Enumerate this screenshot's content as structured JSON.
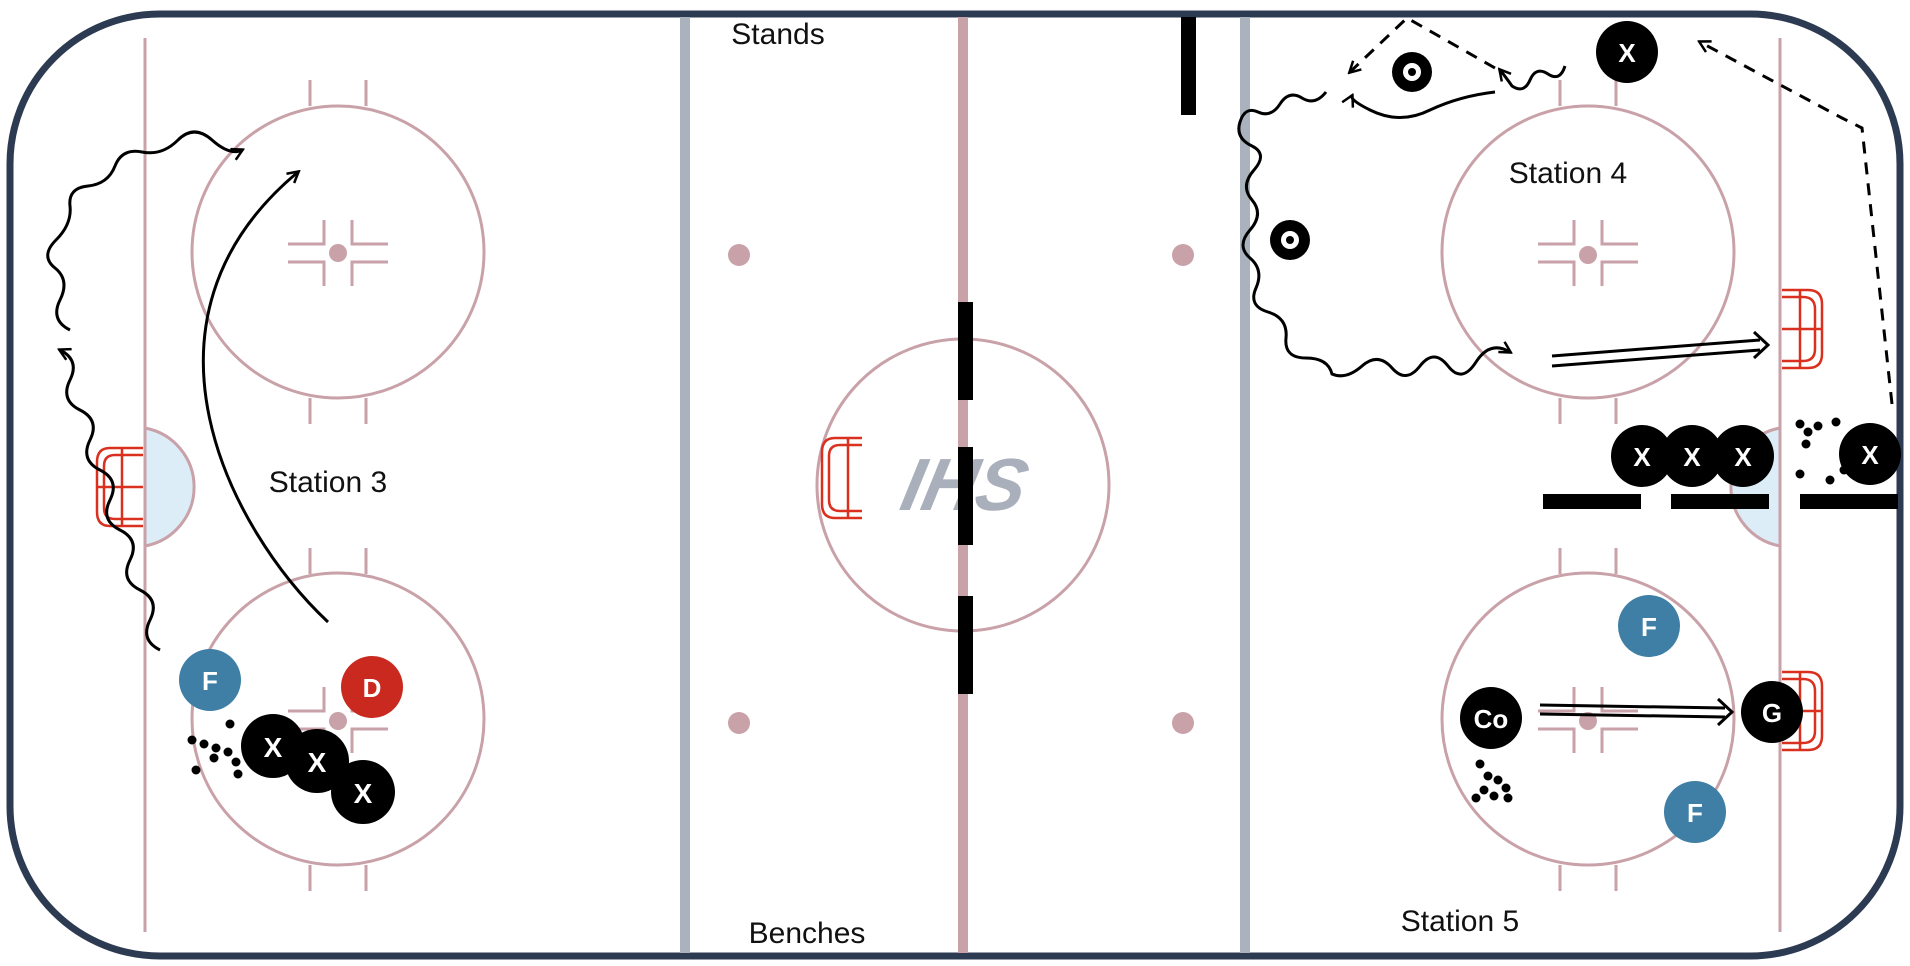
{
  "rink": {
    "colors": {
      "boards": "#2d3b52",
      "lines": "#c9a1a8",
      "blue_line": "#aab3bd",
      "crease": "#dcedf7",
      "net": "#d9301f",
      "player_x": "#000000",
      "forward": "#3f7fa6",
      "defense": "#c9291e",
      "logo": "#a9b0bb"
    }
  },
  "labels": {
    "stands": "Stands",
    "benches": "Benches",
    "station3": "Station 3",
    "station4": "Station 4",
    "station5": "Station 5"
  },
  "logo": {
    "text": "IHS"
  },
  "tokens": {
    "x": "X",
    "f": "F",
    "d": "D",
    "co": "Co",
    "g": "G"
  }
}
